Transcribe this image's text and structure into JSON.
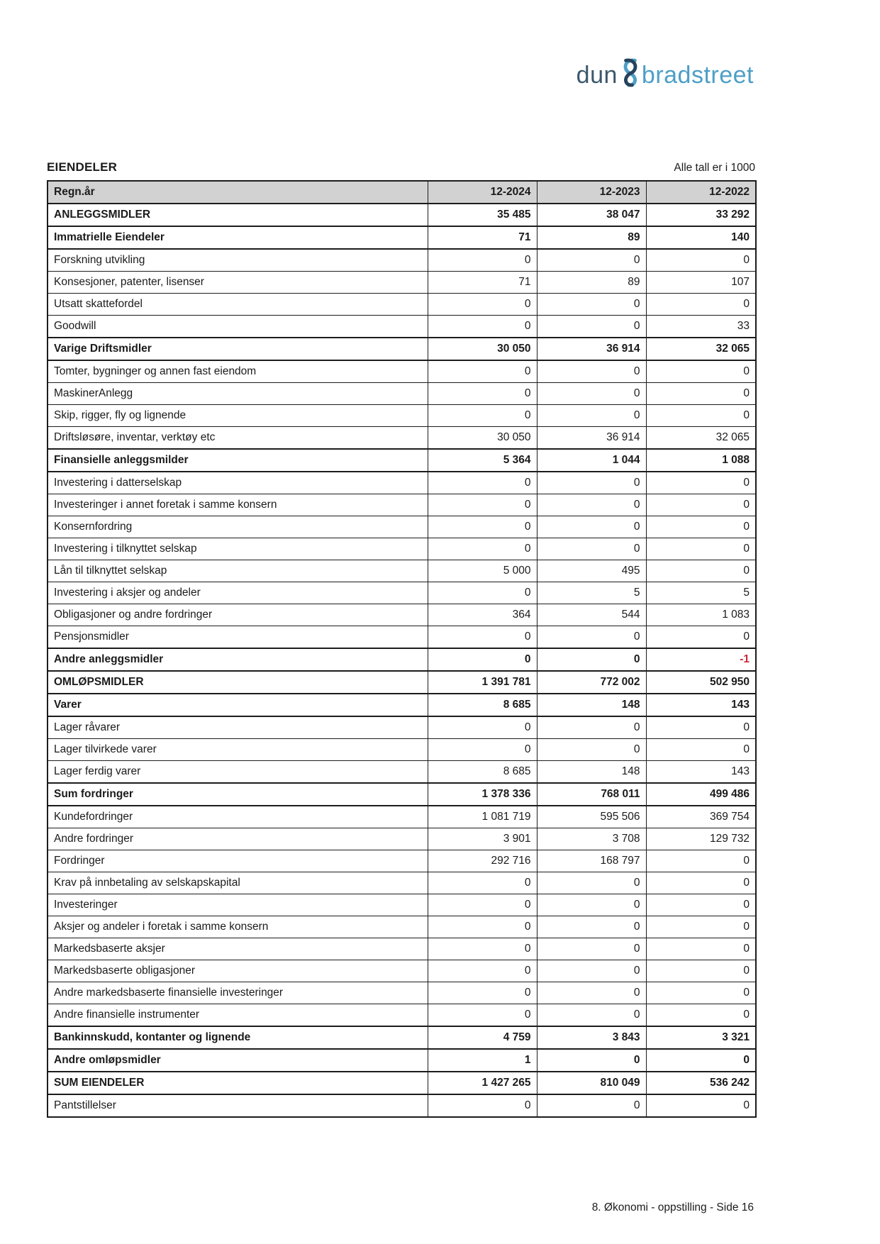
{
  "logo": {
    "part1": "dun",
    "part2": "bradstreet"
  },
  "header": {
    "section_title": "EIENDELER",
    "units_note": "Alle tall er i 1000"
  },
  "colors": {
    "logo_dark": "#3b586d",
    "logo_light": "#4d9fc7",
    "amp_dark": "#26435e",
    "amp_light": "#4d9fc7",
    "header_row_bg": "#d2d2d2",
    "negative_value_red": "#cc2936"
  },
  "table": {
    "columns": [
      "Regn.år",
      "12-2024",
      "12-2023",
      "12-2022"
    ],
    "rows": [
      {
        "label": "ANLEGGSMIDLER",
        "bold": true,
        "values": [
          "35 485",
          "38 047",
          "33 292"
        ]
      },
      {
        "label": "Immatrielle Eiendeler",
        "bold": true,
        "values": [
          "71",
          "89",
          "140"
        ]
      },
      {
        "label": "Forskning utvikling",
        "bold": false,
        "values": [
          "0",
          "0",
          "0"
        ]
      },
      {
        "label": "Konsesjoner, patenter, lisenser",
        "bold": false,
        "values": [
          "71",
          "89",
          "107"
        ]
      },
      {
        "label": "Utsatt skattefordel",
        "bold": false,
        "values": [
          "0",
          "0",
          "0"
        ]
      },
      {
        "label": "Goodwill",
        "bold": false,
        "values": [
          "0",
          "0",
          "33"
        ]
      },
      {
        "label": "Varige Driftsmidler",
        "bold": true,
        "values": [
          "30 050",
          "36 914",
          "32 065"
        ]
      },
      {
        "label": "Tomter, bygninger og annen fast eiendom",
        "bold": false,
        "values": [
          "0",
          "0",
          "0"
        ]
      },
      {
        "label": "MaskinerAnlegg",
        "bold": false,
        "values": [
          "0",
          "0",
          "0"
        ]
      },
      {
        "label": "Skip, rigger, fly og lignende",
        "bold": false,
        "values": [
          "0",
          "0",
          "0"
        ]
      },
      {
        "label": "Driftsløsøre, inventar, verktøy etc",
        "bold": false,
        "values": [
          "30 050",
          "36 914",
          "32 065"
        ]
      },
      {
        "label": "Finansielle anleggsmilder",
        "bold": true,
        "values": [
          "5 364",
          "1 044",
          "1 088"
        ]
      },
      {
        "label": "Investering i datterselskap",
        "bold": false,
        "values": [
          "0",
          "0",
          "0"
        ]
      },
      {
        "label": "Investeringer i annet foretak i samme konsern",
        "bold": false,
        "values": [
          "0",
          "0",
          "0"
        ]
      },
      {
        "label": "Konsernfordring",
        "bold": false,
        "values": [
          "0",
          "0",
          "0"
        ]
      },
      {
        "label": "Investering i tilknyttet selskap",
        "bold": false,
        "values": [
          "0",
          "0",
          "0"
        ]
      },
      {
        "label": "Lån til tilknyttet selskap",
        "bold": false,
        "values": [
          "5 000",
          "495",
          "0"
        ]
      },
      {
        "label": "Investering i aksjer og andeler",
        "bold": false,
        "values": [
          "0",
          "5",
          "5"
        ]
      },
      {
        "label": "Obligasjoner og andre fordringer",
        "bold": false,
        "values": [
          "364",
          "544",
          "1 083"
        ]
      },
      {
        "label": "Pensjonsmidler",
        "bold": false,
        "values": [
          "0",
          "0",
          "0"
        ]
      },
      {
        "label": "Andre anleggsmidler",
        "bold": true,
        "values": [
          "0",
          "0",
          "-1"
        ]
      },
      {
        "label": "OMLØPSMIDLER",
        "bold": true,
        "values": [
          "1 391 781",
          "772 002",
          "502 950"
        ]
      },
      {
        "label": "Varer",
        "bold": true,
        "values": [
          "8 685",
          "148",
          "143"
        ]
      },
      {
        "label": "Lager råvarer",
        "bold": false,
        "values": [
          "0",
          "0",
          "0"
        ]
      },
      {
        "label": "Lager tilvirkede varer",
        "bold": false,
        "values": [
          "0",
          "0",
          "0"
        ]
      },
      {
        "label": "Lager ferdig varer",
        "bold": false,
        "values": [
          "8 685",
          "148",
          "143"
        ]
      },
      {
        "label": "Sum fordringer",
        "bold": true,
        "values": [
          "1 378 336",
          "768 011",
          "499 486"
        ]
      },
      {
        "label": "Kundefordringer",
        "bold": false,
        "values": [
          "1 081 719",
          "595 506",
          "369 754"
        ]
      },
      {
        "label": "Andre fordringer",
        "bold": false,
        "values": [
          "3 901",
          "3 708",
          "129 732"
        ]
      },
      {
        "label": "Fordringer",
        "bold": false,
        "values": [
          "292 716",
          "168 797",
          "0"
        ]
      },
      {
        "label": "Krav på innbetaling av selskapskapital",
        "bold": false,
        "values": [
          "0",
          "0",
          "0"
        ]
      },
      {
        "label": "Investeringer",
        "bold": false,
        "values": [
          "0",
          "0",
          "0"
        ]
      },
      {
        "label": "Aksjer og andeler i foretak i samme konsern",
        "bold": false,
        "values": [
          "0",
          "0",
          "0"
        ]
      },
      {
        "label": "Markedsbaserte aksjer",
        "bold": false,
        "values": [
          "0",
          "0",
          "0"
        ]
      },
      {
        "label": "Markedsbaserte obligasjoner",
        "bold": false,
        "values": [
          "0",
          "0",
          "0"
        ]
      },
      {
        "label": "Andre markedsbaserte finansielle investeringer",
        "bold": false,
        "values": [
          "0",
          "0",
          "0"
        ]
      },
      {
        "label": "Andre finansielle instrumenter",
        "bold": false,
        "values": [
          "0",
          "0",
          "0"
        ]
      },
      {
        "label": "Bankinnskudd, kontanter og lignende",
        "bold": true,
        "values": [
          "4 759",
          "3 843",
          "3 321"
        ]
      },
      {
        "label": "Andre omløpsmidler",
        "bold": true,
        "values": [
          "1",
          "0",
          "0"
        ]
      },
      {
        "label": "SUM EIENDELER",
        "bold": true,
        "values": [
          "1 427 265",
          "810 049",
          "536 242"
        ]
      },
      {
        "label": "Pantstillelser",
        "bold": false,
        "values": [
          "0",
          "0",
          "0"
        ]
      }
    ]
  },
  "footer": {
    "page_label": "8. Økonomi - oppstilling - Side 16"
  }
}
